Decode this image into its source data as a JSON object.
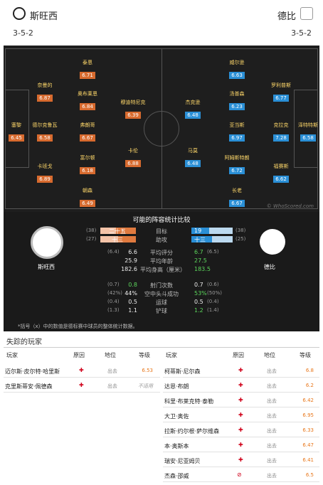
{
  "header": {
    "home": "斯旺西",
    "away": "德比",
    "home_formation": "3-5-2",
    "away_formation": "3-5-2"
  },
  "pitch": {
    "watermark": "© WhoScored.com",
    "home": [
      {
        "name": "塞黎",
        "rating": "6.45"
      },
      {
        "name": "奈曼的",
        "rating": "6.87"
      },
      {
        "name": "德尔克鲁瓦",
        "rating": "6.58"
      },
      {
        "name": "卡班戈",
        "rating": "6.89"
      },
      {
        "name": "泰恩",
        "rating": "6.71"
      },
      {
        "name": "奥布莱恩",
        "rating": "6.84"
      },
      {
        "name": "弗朗哥",
        "rating": "6.67"
      },
      {
        "name": "富尔顿",
        "rating": "6.18"
      },
      {
        "name": "朝森",
        "rating": "6.49"
      },
      {
        "name": "穆迪特尼克",
        "rating": "6.39"
      },
      {
        "name": "卡伦",
        "rating": "6.88"
      }
    ],
    "away": [
      {
        "name": "威尔逊",
        "rating": "6.63"
      },
      {
        "name": "汤普森",
        "rating": "6.23"
      },
      {
        "name": "亚当斯",
        "rating": "6.97"
      },
      {
        "name": "阿姆斯特朗",
        "rating": "6.72"
      },
      {
        "name": "长老",
        "rating": "6.67"
      },
      {
        "name": "罗利普斯",
        "rating": "6.77"
      },
      {
        "name": "克拉克",
        "rating": "7.28"
      },
      {
        "name": "福赛斯",
        "rating": "6.62"
      },
      {
        "name": "泽特特斯",
        "rating": "6.58"
      },
      {
        "name": "杰克逊",
        "rating": "6.48"
      },
      {
        "name": "马莫",
        "rating": "6.48"
      }
    ]
  },
  "comparison": {
    "title": "可能的阵容统计比较",
    "home_name": "斯旺西",
    "away_name": "德比",
    "rows": [
      {
        "label": "目标",
        "lp": "(38)",
        "lv": "二十五",
        "rv": "19",
        "rp": "(38)",
        "bar": true,
        "hf": 0.57,
        "af": 0.43
      },
      {
        "label": "助攻",
        "lp": "(27)",
        "lv": "十三",
        "rv": "十三",
        "rp": "(25)",
        "bar": true,
        "hf": 0.5,
        "af": 0.5
      },
      {
        "label": "平均评分",
        "lp": "(6.4)",
        "lv": "6.6",
        "rv": "6.7",
        "rp": "(6.5)",
        "hl": "r"
      },
      {
        "label": "平均年龄",
        "lp": "",
        "lv": "25.9",
        "rv": "27.5",
        "rp": "",
        "hl": "r"
      },
      {
        "label": "平均身高（厘米）",
        "lp": "",
        "lv": "182.6",
        "rv": "183.5",
        "rp": "",
        "hl": "r"
      },
      {
        "label": "射门次数",
        "lp": "(0.7)",
        "lv": "0.8",
        "rv": "0.7",
        "rp": "(0.6)",
        "hl": "l"
      },
      {
        "label": "空中头斗成功",
        "lp": "(42%)",
        "lv": "44%",
        "rv": "53%",
        "rp": "(50%)",
        "hl": "r"
      },
      {
        "label": "运球",
        "lp": "(0.4)",
        "lv": "0.5",
        "rv": "0.5",
        "rp": "(0.4)"
      },
      {
        "label": "铲球",
        "lp": "(1.3)",
        "lv": "1.1",
        "rv": "1.2",
        "rp": "(1.4)",
        "hl": "r"
      }
    ],
    "note": "*括号（x）中的数值是德标赛中球员的整体统计数据。"
  },
  "missing": {
    "title": "失踪的玩家",
    "headers": {
      "player": "玩家",
      "reason": "原因",
      "status": "地位",
      "rating": "等级"
    },
    "home": [
      {
        "name": "迈尔斯·皮尔特·哈里斯",
        "status": "出去",
        "rating": "6.53"
      },
      {
        "name": "克里斯蒂安·佩德森",
        "status": "出去",
        "rating": "不适用"
      }
    ],
    "away": [
      {
        "name": "柯蒂斯·尼尔森",
        "status": "出去",
        "rating": "6.8"
      },
      {
        "name": "达恩·布朗",
        "status": "出去",
        "rating": "6.2"
      },
      {
        "name": "科里·布莱克特·泰勒",
        "status": "出去",
        "rating": "6.42"
      },
      {
        "name": "大卫·奥佐",
        "status": "出去",
        "rating": "6.95"
      },
      {
        "name": "拉斯·约尔根·萨尔维森",
        "status": "出去",
        "rating": "6.33"
      },
      {
        "name": "本·奥斯本",
        "status": "出去",
        "rating": "6.47"
      },
      {
        "name": "瑞安·尼亚姆贝",
        "status": "出去",
        "rating": "6.41"
      },
      {
        "name": "杰森·邵威",
        "status": "出去",
        "rating": "6.5"
      }
    ]
  }
}
